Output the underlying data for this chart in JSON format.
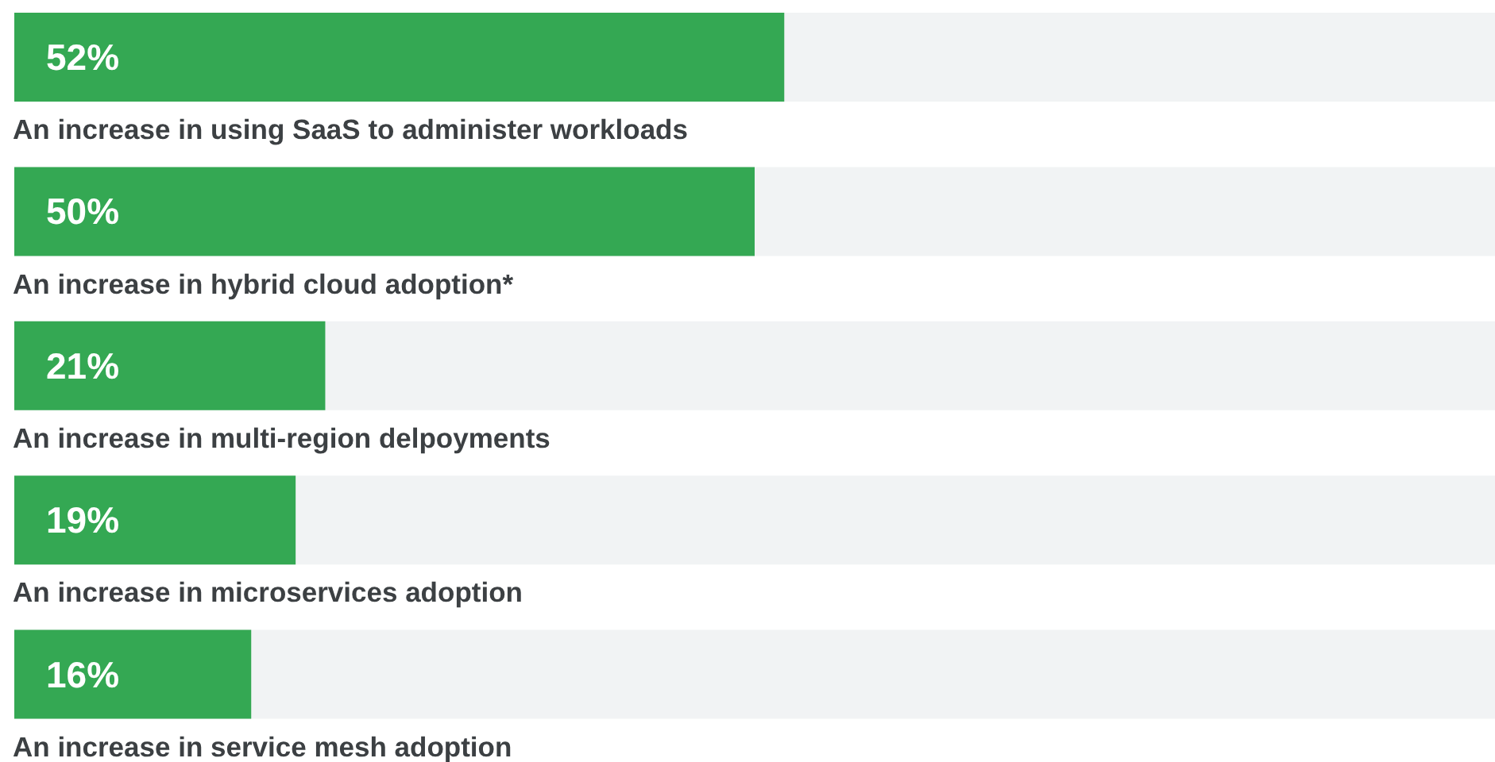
{
  "chart_data": {
    "type": "bar",
    "orientation": "horizontal",
    "categories": [
      "An increase in using SaaS to administer workloads",
      "An increase in hybrid cloud adoption*",
      "An increase in multi-region delpoyments",
      "An increase in microservices adoption",
      "An increase in service mesh adoption"
    ],
    "values": [
      52,
      50,
      21,
      19,
      16
    ],
    "value_labels": [
      "52%",
      "50%",
      "21%",
      "19%",
      "16%"
    ],
    "color": "#34a853",
    "xlim": [
      0,
      100
    ],
    "tick_labels": "y",
    "grid": false,
    "legend": false
  }
}
